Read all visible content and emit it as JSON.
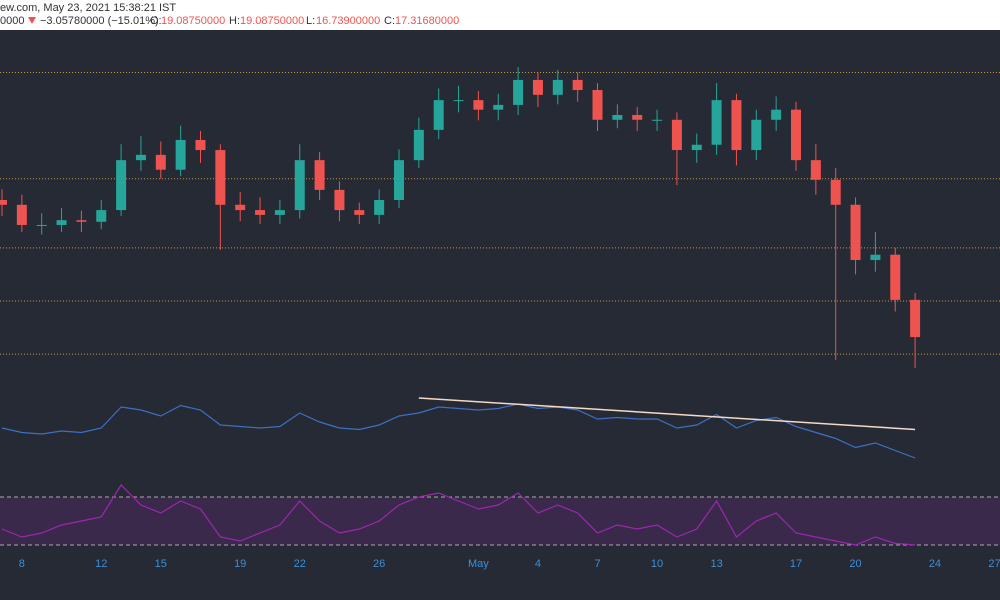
{
  "header": {
    "source": "ew.com, May 23, 2021 15:38:21 IST",
    "change_prefix": "0000",
    "change": "−3.05780000 (−15.01%)",
    "open_label": "O:",
    "open": "19.08750000",
    "high_label": "H:",
    "high": "19.08750000",
    "low_label": "L:",
    "low": "16.73900000",
    "close_label": "C:",
    "close": "17.31680000"
  },
  "chart_data": {
    "type": "candlestick",
    "categories": [
      null,
      "8",
      null,
      null,
      null,
      "12",
      null,
      null,
      "15",
      null,
      null,
      null,
      "19",
      null,
      null,
      "22",
      null,
      null,
      null,
      "26",
      null,
      null,
      null,
      null,
      "May",
      null,
      null,
      "4",
      null,
      null,
      "7",
      null,
      null,
      "10",
      null,
      null,
      "13",
      null,
      null,
      null,
      "17",
      null,
      null,
      "20",
      null,
      null,
      null,
      "24",
      null,
      null,
      "27"
    ],
    "open": [
      19.9,
      19.81,
      19.43,
      19.43,
      19.52,
      19.49,
      19.71,
      20.65,
      20.75,
      20.47,
      21.03,
      20.84,
      19.81,
      19.71,
      19.62,
      19.71,
      20.65,
      20.09,
      19.71,
      19.62,
      19.9,
      20.65,
      21.22,
      21.78,
      21.78,
      21.6,
      21.69,
      22.16,
      21.88,
      22.16,
      21.97,
      21.41,
      21.5,
      21.41,
      21.41,
      20.84,
      20.94,
      21.78,
      20.84,
      21.41,
      21.6,
      20.65,
      20.28,
      19.81,
      18.77,
      18.87,
      18.02,
      null,
      null,
      null,
      null
    ],
    "high": [
      20.1,
      20.0,
      19.65,
      19.75,
      19.7,
      19.9,
      20.95,
      21.1,
      21.0,
      21.3,
      21.2,
      20.95,
      20.05,
      19.95,
      19.9,
      20.95,
      20.8,
      20.25,
      19.85,
      20.1,
      20.85,
      21.45,
      22.0,
      22.05,
      21.95,
      21.9,
      22.4,
      22.3,
      22.35,
      22.3,
      22.1,
      21.7,
      21.65,
      21.6,
      21.55,
      21.15,
      22.1,
      21.9,
      21.6,
      21.85,
      21.75,
      20.95,
      20.5,
      19.95,
      19.3,
      19.0,
      18.15,
      null,
      null,
      null,
      null
    ],
    "low": [
      19.6,
      19.3,
      19.25,
      19.3,
      19.3,
      19.35,
      19.6,
      20.45,
      20.3,
      20.35,
      20.6,
      18.96,
      19.5,
      19.45,
      19.45,
      19.55,
      19.9,
      19.5,
      19.45,
      19.45,
      19.75,
      20.5,
      21.05,
      21.55,
      21.4,
      21.4,
      21.5,
      21.65,
      21.7,
      21.75,
      21.2,
      21.25,
      21.2,
      21.2,
      20.18,
      20.6,
      20.75,
      20.55,
      20.65,
      21.2,
      20.45,
      20.0,
      16.89,
      18.5,
      18.55,
      17.8,
      16.74,
      null,
      null,
      null,
      null
    ],
    "close": [
      19.81,
      19.43,
      19.43,
      19.52,
      19.49,
      19.71,
      20.65,
      20.75,
      20.47,
      21.03,
      20.84,
      19.81,
      19.71,
      19.62,
      19.71,
      20.65,
      20.09,
      19.71,
      19.62,
      19.9,
      20.65,
      21.22,
      21.78,
      21.78,
      21.6,
      21.69,
      22.16,
      21.88,
      22.16,
      21.97,
      21.41,
      21.5,
      21.41,
      21.41,
      20.84,
      20.94,
      21.78,
      20.84,
      21.41,
      21.6,
      20.65,
      20.28,
      19.81,
      18.77,
      18.87,
      18.02,
      17.32,
      null,
      null,
      null,
      null
    ],
    "up_color": "#26a69a",
    "down_color": "#ef5350",
    "ylim": [
      16.7,
      23.1
    ],
    "levels": [
      17,
      18,
      19,
      20.3,
      22.3
    ],
    "level_color": "#c8963c",
    "rsi": {
      "color": "#3d6fc4",
      "values": [
        48,
        45,
        44,
        46,
        45,
        48,
        62,
        60,
        56,
        63,
        60,
        50,
        49,
        48,
        49,
        58,
        52,
        48,
        47,
        50,
        56,
        58,
        62,
        61,
        60,
        61,
        64,
        61,
        62,
        60,
        54,
        55,
        54,
        54,
        48,
        50,
        57,
        48,
        53,
        55,
        49,
        45,
        41,
        35,
        38,
        33,
        28,
        null,
        null,
        null,
        null
      ],
      "ylim": [
        20,
        80
      ],
      "trendline": {
        "color": "#f5d9c8",
        "start_index": 21,
        "start": 68,
        "end_index": 46,
        "end": 47
      }
    },
    "stoch": {
      "color": "#9c27b0",
      "values": [
        40,
        30,
        35,
        45,
        50,
        55,
        95,
        70,
        60,
        75,
        65,
        30,
        25,
        35,
        45,
        75,
        50,
        35,
        40,
        50,
        70,
        80,
        85,
        75,
        65,
        70,
        85,
        60,
        70,
        60,
        35,
        45,
        40,
        45,
        30,
        40,
        75,
        30,
        50,
        60,
        35,
        30,
        25,
        20,
        30,
        22,
        20,
        null,
        null,
        null,
        null
      ],
      "ylim": [
        0,
        100
      ],
      "bands": [
        20,
        80
      ]
    }
  }
}
